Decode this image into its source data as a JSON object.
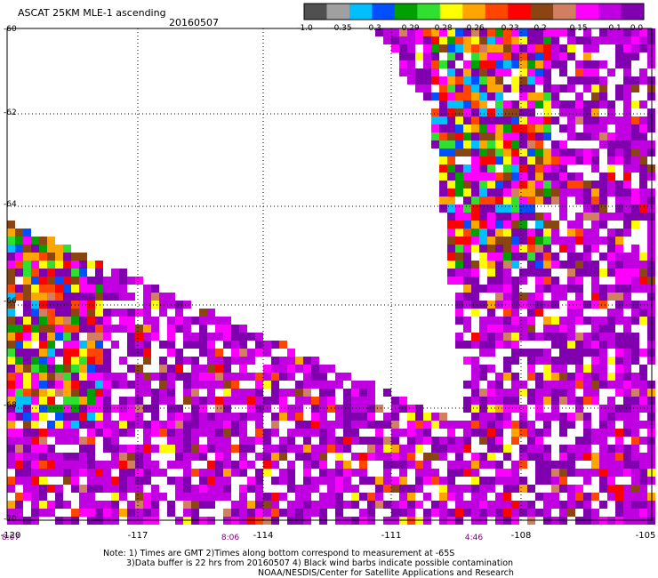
{
  "title": "ASCAT 25KM MLE-1 ascending",
  "date": "20160507",
  "colorbar": {
    "labels": [
      "-1.0",
      "-0.35",
      "-0.3",
      "-0.29",
      "-0.28",
      "-0.26",
      "-0.23",
      "-0.2",
      "-0.15",
      "-0.1",
      "0.0"
    ],
    "colors": [
      "#505050",
      "#a0a0a0",
      "#00bfff",
      "#0050ff",
      "#00a000",
      "#30e030",
      "#ffff00",
      "#ffa500",
      "#ff4500",
      "#ff0000",
      "#8b4513",
      "#d08060",
      "#ff00ff",
      "#c000e0",
      "#8000b0"
    ]
  },
  "lat_labels": [
    "-60",
    "-62",
    "-64",
    "-66",
    "-68",
    "-70"
  ],
  "lon_labels": [
    "-120",
    "-117",
    "-114",
    "-111",
    "-108",
    "-105"
  ],
  "time_labels": [
    "8:07",
    "8:06",
    "4:46"
  ],
  "notes": [
    "Note: 1) Times are GMT 2)Times along bottom correspond to measurement at -65S",
    "3)Data buffer is 22 hrs from 20160507 4) Black wind barbs indicate possible contamination",
    "NOAA/NESDIS/Center for Satellite Applications and Research"
  ]
}
